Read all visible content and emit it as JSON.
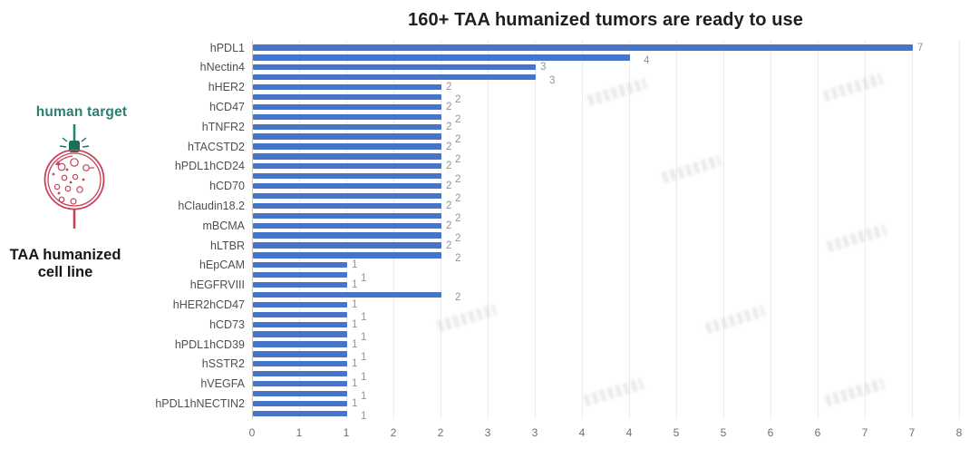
{
  "illustration": {
    "target_label": "human target",
    "cell_label_lines": [
      "TAA humanized",
      "cell line"
    ],
    "target_color": "#2a7f6d",
    "cell_color": "#c64458"
  },
  "chart_data": {
    "type": "bar",
    "orientation": "horizontal",
    "title": "160+ TAA humanized tumors are ready to use",
    "categories": [
      "hPDL1",
      "hNectin4",
      "hHER2",
      "hCD47",
      "hTNFR2",
      "hTACSTD2",
      "hPDL1hCD24",
      "hCD70",
      "hClaudin18.2",
      "mBCMA",
      "hLTBR",
      "hEpCAM",
      "hEGFRVIII",
      "hHER2hCD47",
      "hCD73",
      "hPDL1hCD39",
      "hSSTR2",
      "hVEGFA",
      "hPDL1hNECTIN2"
    ],
    "series": [
      {
        "values": [
          7,
          3,
          2,
          2,
          2,
          2,
          2,
          2,
          2,
          2,
          2,
          1,
          1,
          1,
          1,
          1,
          1,
          1,
          1
        ]
      },
      {
        "values": [
          4,
          3,
          2,
          2,
          2,
          2,
          2,
          2,
          2,
          2,
          2,
          1,
          2,
          1,
          1,
          1,
          1,
          1,
          1
        ]
      }
    ],
    "data_labels_shown": true,
    "xlim": [
      0,
      7.5
    ],
    "x_tick_labels": [
      "0",
      "1",
      "1",
      "2",
      "2",
      "3",
      "3",
      "4",
      "4",
      "5",
      "5",
      "6",
      "6",
      "7",
      "7",
      "8"
    ],
    "grid": true,
    "legend_position": "none",
    "bar_color": "#4674c8",
    "value_label_color": "#8f949d",
    "category_label_color": "#4f4f4f",
    "tick_label_color": "#6f6f6f",
    "title_color": "#1f1f1f"
  }
}
